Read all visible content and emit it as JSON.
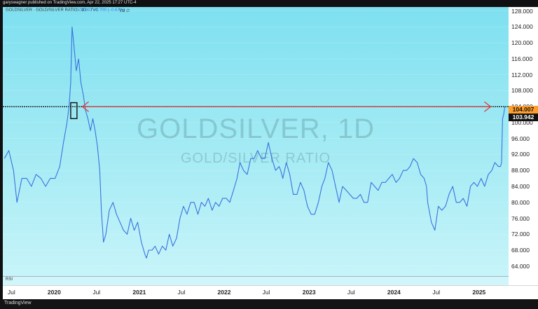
{
  "header": {
    "published": "garyswagner published on TradingView.com, Apr 22, 2025 17:27 UTC-4",
    "symbol": "GOLDSILVER · GOLD/SILVER RATIO · 1D · TVC",
    "ohlc": "104.007  −0.700 (−0.67%)",
    "vol": "Vol ∅"
  },
  "watermark": {
    "symbol": "GOLDSILVER, 1D",
    "name": "GOLD/SILVER RATIO"
  },
  "footer": {
    "brand": "TradingView"
  },
  "rsi_pane": {
    "label": "RSI"
  },
  "colors": {
    "line": "#3a72e0",
    "arrow": "#e03a3a",
    "price_tag": "#ff9e2c",
    "close_tag": "#111111"
  },
  "chart_data": {
    "type": "line",
    "title": "GOLDSILVER, 1D",
    "ylim": [
      61.5,
      129
    ],
    "y_ticks": [
      "128.000",
      "124.000",
      "120.000",
      "116.000",
      "112.000",
      "108.000",
      "104.000",
      "100.000",
      "96.000",
      "92.000",
      "88.000",
      "84.000",
      "80.000",
      "76.000",
      "72.000",
      "68.000",
      "64.000"
    ],
    "x_ticks": [
      "Jul",
      "2020",
      "Jul",
      "2021",
      "Jul",
      "2022",
      "Jul",
      "2023",
      "Jul",
      "2024",
      "Jul",
      "2025"
    ],
    "last_price": "104.007",
    "close_price": "103.942",
    "reference_level": 104.0,
    "highlight_box": {
      "x_start": "2020-03-12",
      "x_end": "2020-04-08",
      "y_low": 101,
      "y_high": 105
    },
    "arrow": {
      "x_start": "2020-05-01",
      "x_end": "2025-02-20",
      "y": 104.0
    },
    "series": [
      {
        "x": [
          "2019-06-01",
          "2019-06-20",
          "2019-07-10",
          "2019-07-25",
          "2019-08-15",
          "2019-09-05",
          "2019-09-25",
          "2019-10-15",
          "2019-11-05",
          "2019-11-25",
          "2019-12-15",
          "2020-01-05",
          "2020-01-25",
          "2020-02-10",
          "2020-02-25",
          "2020-03-05",
          "2020-03-12",
          "2020-03-18",
          "2020-03-25",
          "2020-04-05",
          "2020-04-15",
          "2020-04-25",
          "2020-05-05",
          "2020-05-15",
          "2020-05-25",
          "2020-06-05",
          "2020-06-15",
          "2020-06-25",
          "2020-07-05",
          "2020-07-15",
          "2020-07-22",
          "2020-07-31",
          "2020-08-10",
          "2020-08-25",
          "2020-09-10",
          "2020-09-25",
          "2020-10-10",
          "2020-10-25",
          "2020-11-10",
          "2020-11-25",
          "2020-12-10",
          "2020-12-25",
          "2021-01-10",
          "2021-01-25",
          "2021-02-01",
          "2021-02-10",
          "2021-02-25",
          "2021-03-10",
          "2021-03-25",
          "2021-04-10",
          "2021-04-25",
          "2021-05-10",
          "2021-05-25",
          "2021-06-10",
          "2021-06-25",
          "2021-07-10",
          "2021-07-25",
          "2021-08-10",
          "2021-08-25",
          "2021-09-10",
          "2021-09-25",
          "2021-10-10",
          "2021-10-25",
          "2021-11-10",
          "2021-11-25",
          "2021-12-10",
          "2021-12-25",
          "2022-01-10",
          "2022-01-25",
          "2022-02-10",
          "2022-02-25",
          "2022-03-10",
          "2022-03-25",
          "2022-04-10",
          "2022-04-25",
          "2022-05-10",
          "2022-05-25",
          "2022-06-10",
          "2022-06-25",
          "2022-07-10",
          "2022-07-25",
          "2022-08-10",
          "2022-08-25",
          "2022-09-01",
          "2022-09-10",
          "2022-09-25",
          "2022-10-10",
          "2022-10-25",
          "2022-11-10",
          "2022-11-25",
          "2022-12-10",
          "2022-12-25",
          "2023-01-10",
          "2023-01-25",
          "2023-02-10",
          "2023-02-25",
          "2023-03-10",
          "2023-03-25",
          "2023-04-10",
          "2023-04-25",
          "2023-05-10",
          "2023-05-25",
          "2023-06-10",
          "2023-06-25",
          "2023-07-10",
          "2023-07-25",
          "2023-08-10",
          "2023-08-25",
          "2023-09-10",
          "2023-09-25",
          "2023-10-10",
          "2023-10-25",
          "2023-11-10",
          "2023-11-25",
          "2023-12-10",
          "2023-12-25",
          "2024-01-10",
          "2024-01-25",
          "2024-02-10",
          "2024-02-25",
          "2024-03-10",
          "2024-03-25",
          "2024-04-10",
          "2024-04-25",
          "2024-05-10",
          "2024-05-20",
          "2024-05-25",
          "2024-06-10",
          "2024-06-25",
          "2024-07-10",
          "2024-07-25",
          "2024-08-10",
          "2024-08-25",
          "2024-09-10",
          "2024-09-25",
          "2024-10-10",
          "2024-10-25",
          "2024-11-10",
          "2024-11-25",
          "2024-12-10",
          "2024-12-25",
          "2025-01-10",
          "2025-01-25",
          "2025-02-10",
          "2025-02-25",
          "2025-03-10",
          "2025-03-25",
          "2025-04-03",
          "2025-04-08",
          "2025-04-12",
          "2025-04-17",
          "2025-04-22"
        ],
        "y": [
          91,
          93,
          88,
          80,
          86,
          86,
          84,
          87,
          86,
          84,
          86,
          86,
          89,
          95,
          100,
          104,
          110,
          124,
          120,
          113,
          116,
          110,
          107,
          103,
          101,
          98,
          101,
          98,
          94,
          88,
          78,
          70,
          72,
          78,
          80,
          77,
          75,
          73,
          72,
          76,
          73,
          75,
          70,
          67,
          66,
          68,
          68,
          69,
          67,
          69,
          68,
          72,
          69,
          71,
          76,
          79,
          77,
          80,
          80,
          77,
          80,
          79,
          81,
          78,
          80,
          79,
          81,
          81,
          80,
          83,
          86,
          90,
          88,
          87,
          91,
          91,
          93,
          91,
          91,
          95,
          91,
          88,
          89,
          88,
          86,
          90,
          87,
          82,
          82,
          85,
          83,
          79,
          77,
          77,
          80,
          84,
          86,
          90,
          88,
          84,
          80,
          84,
          83,
          82,
          81,
          81,
          82,
          80,
          80,
          85,
          84,
          83,
          85,
          85,
          86,
          87,
          85,
          86,
          88,
          88,
          89,
          91,
          90,
          87,
          86,
          84,
          80,
          75,
          73,
          79,
          78,
          79,
          82,
          84,
          80,
          80,
          81,
          79,
          84,
          85,
          84,
          86,
          84,
          87,
          88,
          90,
          89,
          89,
          90,
          101,
          102,
          104
        ]
      }
    ]
  }
}
